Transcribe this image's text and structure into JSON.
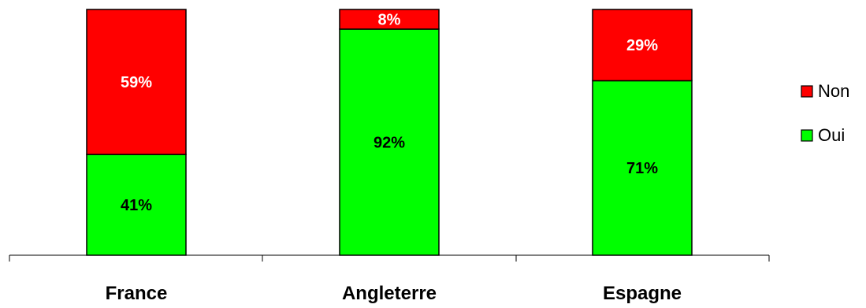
{
  "chart_data": {
    "type": "bar",
    "stacked": true,
    "percent": true,
    "categories": [
      "France",
      "Angleterre",
      "Espagne"
    ],
    "series": [
      {
        "name": "Oui",
        "values": [
          41,
          92,
          71
        ],
        "color": "#00ff00"
      },
      {
        "name": "Non",
        "values": [
          59,
          8,
          29
        ],
        "color": "#ff0000"
      }
    ],
    "data_labels": {
      "Oui": [
        "41%",
        "92%",
        "71%"
      ],
      "Non": [
        "59%",
        "8%",
        "29%"
      ]
    },
    "legend_position": "right",
    "ylim": [
      0,
      100
    ],
    "grid": false
  }
}
